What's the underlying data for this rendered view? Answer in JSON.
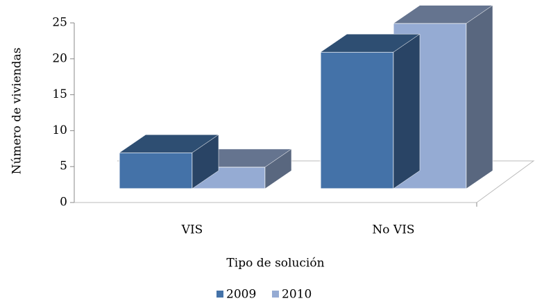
{
  "chart_data": {
    "type": "bar3d",
    "x_label": "Tipo de solución",
    "y_label": "Número de viviendas",
    "categories": [
      "VIS",
      "No VIS"
    ],
    "series": [
      {
        "name": "2009",
        "color": "#4472a8",
        "values": [
          5,
          19
        ]
      },
      {
        "name": "2010",
        "color": "#95abd3",
        "values": [
          3,
          23
        ]
      }
    ],
    "ylim": [
      0,
      25
    ],
    "yticks": [
      0,
      5,
      10,
      15,
      20,
      25
    ],
    "legend": "bottom"
  }
}
